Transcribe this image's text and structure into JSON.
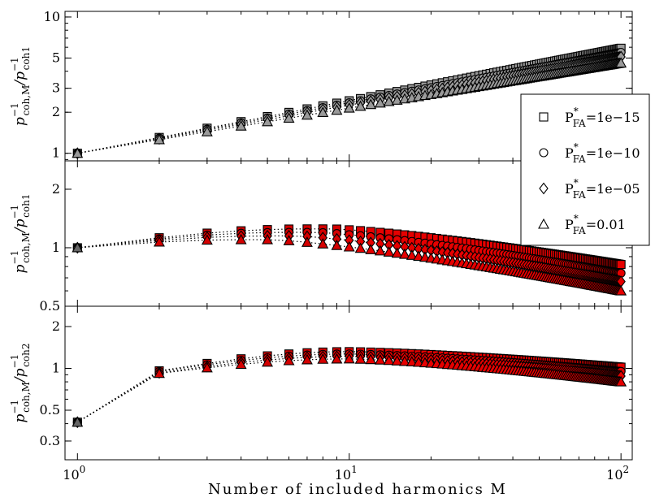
{
  "chart_data": {
    "type": "scatter",
    "xlabel": "Number of included harmonics M",
    "x_scale": "log",
    "xlim": [
      0.9,
      110
    ],
    "x_ticks": [
      {
        "value": 1,
        "label": "10",
        "exp": "0"
      },
      {
        "value": 10,
        "label": "10",
        "exp": "1"
      },
      {
        "value": 100,
        "label": "10",
        "exp": "2"
      }
    ],
    "legend": {
      "placement": "right",
      "entries": [
        {
          "marker": "square",
          "label_main": "P",
          "label_sup": "*",
          "label_sub": "FA",
          "label_value": "=1e−15"
        },
        {
          "marker": "circle",
          "label_main": "P",
          "label_sup": "*",
          "label_sub": "FA",
          "label_value": "=1e−10"
        },
        {
          "marker": "diamond",
          "label_main": "P",
          "label_sup": "*",
          "label_sub": "FA",
          "label_value": "=1e−05"
        },
        {
          "marker": "triangle",
          "label_main": "P",
          "label_sup": "*",
          "label_sub": "FA",
          "label_value": "=0.01"
        }
      ]
    },
    "panels": [
      {
        "ylabel_num": "p⁻¹ coh,M",
        "ylabel_den": "p⁻¹ coh1",
        "ylabel_num_sub": "coh,M",
        "ylabel_den_sub": "coh1",
        "y_scale": "log",
        "ylim": [
          0.88,
          11
        ],
        "y_ticks": [
          {
            "value": 1,
            "label": "1"
          },
          {
            "value": 2,
            "label": "2"
          },
          {
            "value": 3,
            "label": "3"
          },
          {
            "value": 5,
            "label": "5"
          },
          {
            "value": 10,
            "label": "10"
          }
        ],
        "marker_fill": "#9a9a9a",
        "fill_after_m": 10,
        "series": [
          {
            "marker": "square",
            "m_start": 1,
            "m_end": 100,
            "y_start": 1.0,
            "y_end": 5.9,
            "curve": "power"
          },
          {
            "marker": "circle",
            "m_start": 1,
            "m_end": 100,
            "y_start": 1.0,
            "y_end": 5.5,
            "curve": "power"
          },
          {
            "marker": "diamond",
            "m_start": 1,
            "m_end": 100,
            "y_start": 1.0,
            "y_end": 5.1,
            "curve": "power"
          },
          {
            "marker": "triangle",
            "m_start": 1,
            "m_end": 100,
            "y_start": 1.0,
            "y_end": 4.6,
            "curve": "power"
          }
        ]
      },
      {
        "ylabel_num_sub": "coh,M",
        "ylabel_den_sub": "coh1",
        "y_scale": "log",
        "ylim": [
          0.5,
          2.8
        ],
        "y_ticks": [
          {
            "value": 0.5,
            "label": "0.5"
          },
          {
            "value": 1,
            "label": "1"
          },
          {
            "value": 2,
            "label": "2"
          }
        ],
        "marker_fill": "#e60000",
        "fill_after_m": 10,
        "series": [
          {
            "marker": "square",
            "m_start": 1,
            "m_end": 100,
            "y_start": 1.0,
            "y_peak": 1.25,
            "m_peak": 7,
            "y_end": 0.82,
            "curve": "hump"
          },
          {
            "marker": "circle",
            "m_start": 1,
            "m_end": 100,
            "y_start": 1.0,
            "y_peak": 1.2,
            "m_peak": 6,
            "y_end": 0.74,
            "curve": "hump"
          },
          {
            "marker": "diamond",
            "m_start": 1,
            "m_end": 100,
            "y_start": 1.0,
            "y_peak": 1.15,
            "m_peak": 5,
            "y_end": 0.67,
            "curve": "hump"
          },
          {
            "marker": "triangle",
            "m_start": 1,
            "m_end": 100,
            "y_start": 1.0,
            "y_peak": 1.1,
            "m_peak": 4,
            "y_end": 0.6,
            "curve": "hump"
          }
        ]
      },
      {
        "ylabel_num_sub": "coh,M",
        "ylabel_den_sub": "coh2",
        "y_scale": "log",
        "ylim": [
          0.22,
          2.8
        ],
        "y_ticks": [
          {
            "value": 0.3,
            "label": "0.3"
          },
          {
            "value": 0.5,
            "label": "0.5"
          },
          {
            "value": 1,
            "label": "1"
          },
          {
            "value": 2,
            "label": "2"
          }
        ],
        "marker_fill": "#e60000",
        "fill_after_m": 10,
        "series": [
          {
            "marker": "square",
            "m_start": 1,
            "m_end": 100,
            "y_start": 0.41,
            "y_m2": 0.96,
            "y_peak": 1.32,
            "m_peak": 10,
            "y_end": 1.02,
            "curve": "rise"
          },
          {
            "marker": "circle",
            "m_start": 1,
            "m_end": 100,
            "y_start": 0.41,
            "y_m2": 0.95,
            "y_peak": 1.27,
            "m_peak": 10,
            "y_end": 0.95,
            "curve": "rise"
          },
          {
            "marker": "diamond",
            "m_start": 1,
            "m_end": 100,
            "y_start": 0.41,
            "y_m2": 0.93,
            "y_peak": 1.22,
            "m_peak": 10,
            "y_end": 0.88,
            "curve": "rise"
          },
          {
            "marker": "triangle",
            "m_start": 1,
            "m_end": 100,
            "y_start": 0.41,
            "y_m2": 0.92,
            "y_peak": 1.17,
            "m_peak": 10,
            "y_end": 0.8,
            "curve": "rise"
          }
        ]
      }
    ]
  }
}
